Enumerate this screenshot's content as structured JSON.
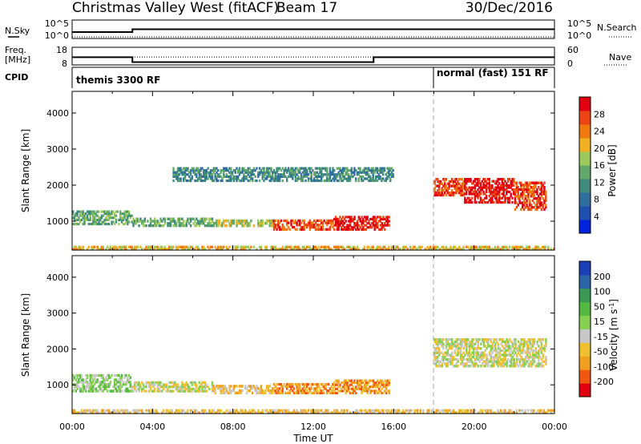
{
  "header": {
    "station": "Christmas Valley West (fitACF)",
    "beam": "Beam 17",
    "date": "30/Dec/2016"
  },
  "colors": {
    "power_scale": [
      "#0022dd",
      "#1d4fb0",
      "#2f6fa0",
      "#3f8a7a",
      "#62a86a",
      "#9cc95a",
      "#f2b020",
      "#f07a10",
      "#ec4412",
      "#e00010"
    ],
    "velocity_scale": [
      "#e00010",
      "#f05810",
      "#f0a020",
      "#f0c030",
      "#c8c8c8",
      "#88d050",
      "#55b840",
      "#3a9a55",
      "#2a65a8",
      "#1b3fb8"
    ]
  },
  "chart_data": [
    {
      "type": "line",
      "name": "nsky-nsearch-panel",
      "left_label": "N.Sky",
      "right_label": "N.Search",
      "left_ticks": [
        "10^5",
        "10^0"
      ],
      "right_ticks": [
        "10^5",
        "10^0"
      ],
      "xlim": [
        0,
        24
      ],
      "series": [
        {
          "x": [
            0,
            3,
            3,
            24
          ],
          "y": [
            0.35,
            0.35,
            0.5,
            0.5
          ]
        }
      ]
    },
    {
      "type": "line",
      "name": "freq-nave-panel",
      "left_label": "Freq. [MHz]",
      "right_label": "Nave",
      "left_ticks": [
        "18",
        "8"
      ],
      "right_ticks": [
        "60",
        "0"
      ],
      "xlim": [
        0,
        24
      ],
      "ylim": [
        8,
        18
      ],
      "series": [
        {
          "name": "Freq.",
          "x": [
            0,
            3,
            3,
            15,
            15,
            24
          ],
          "y": [
            12.4,
            12.4,
            9.6,
            9.6,
            12.4,
            12.4
          ]
        },
        {
          "name": "Nave",
          "x": [
            0,
            24
          ],
          "y": [
            27,
            27
          ]
        }
      ]
    },
    {
      "type": "table",
      "name": "cpid-panel",
      "label": "CPID",
      "segments": [
        {
          "start": 0,
          "end": 18,
          "text": "themis 3300 RF"
        },
        {
          "start": 18,
          "end": 24,
          "text": "normal (fast) 151 RF"
        }
      ]
    },
    {
      "type": "heatmap",
      "name": "power-rti",
      "ylabel": "Slant Range [km]",
      "yticks": [
        1000,
        2000,
        3000,
        4000
      ],
      "ylim": [
        200,
        4600
      ],
      "xlim": [
        0,
        24
      ],
      "colorbar_label": "Power [dB]",
      "colorbar_ticks": [
        "28",
        "24",
        "20",
        "16",
        "12",
        "8",
        "4"
      ],
      "features": [
        {
          "t0": 0,
          "t1": 3,
          "r0": 900,
          "r1": 1300,
          "level": 4
        },
        {
          "t0": 3,
          "t1": 7,
          "r0": 850,
          "r1": 1100,
          "level": 4
        },
        {
          "t0": 7,
          "t1": 10,
          "r0": 850,
          "r1": 1050,
          "level": 5
        },
        {
          "t0": 10,
          "t1": 13,
          "r0": 750,
          "r1": 1050,
          "level": 8
        },
        {
          "t0": 13,
          "t1": 15.8,
          "r0": 750,
          "r1": 1150,
          "level": 9
        },
        {
          "t0": 18,
          "t1": 19.5,
          "r0": 1700,
          "r1": 2200,
          "level": 8
        },
        {
          "t0": 19.5,
          "t1": 22,
          "r0": 1500,
          "r1": 2200,
          "level": 9
        },
        {
          "t0": 22,
          "t1": 23.6,
          "r0": 1300,
          "r1": 2100,
          "level": 8
        },
        {
          "t0": 0,
          "t1": 24,
          "r0": 200,
          "r1": 320,
          "level": 6
        },
        {
          "t0": 5,
          "t1": 16,
          "r0": 2100,
          "r1": 2500,
          "level": 3
        }
      ],
      "markers": [
        {
          "x": 18
        }
      ]
    },
    {
      "type": "heatmap",
      "name": "velocity-rti",
      "ylabel": "Slant Range [km]",
      "xlabel": "Time UT",
      "yticks": [
        1000,
        2000,
        3000,
        4000
      ],
      "ylim": [
        200,
        4600
      ],
      "xlim": [
        0,
        24
      ],
      "xticks": [
        "00:00",
        "04:00",
        "08:00",
        "12:00",
        "16:00",
        "20:00",
        "00:00"
      ],
      "colorbar_label": "Velocity [m s^-1]",
      "colorbar_ticks": [
        "200",
        "100",
        "50",
        "15",
        "-15",
        "-50",
        "-100",
        "-200"
      ],
      "features": [
        {
          "t0": 0,
          "t1": 3,
          "r0": 800,
          "r1": 1300,
          "level": 5
        },
        {
          "t0": 3,
          "t1": 7,
          "r0": 800,
          "r1": 1100,
          "level": 4
        },
        {
          "t0": 7,
          "t1": 10,
          "r0": 750,
          "r1": 1000,
          "level": 3
        },
        {
          "t0": 10,
          "t1": 13,
          "r0": 750,
          "r1": 1050,
          "level": 2
        },
        {
          "t0": 13,
          "t1": 15.8,
          "r0": 750,
          "r1": 1150,
          "level": 2
        },
        {
          "t0": 18,
          "t1": 23.6,
          "r0": 1500,
          "r1": 2300,
          "level": 4
        },
        {
          "t0": 0,
          "t1": 24,
          "r0": 200,
          "r1": 320,
          "level": 3
        }
      ],
      "markers": [
        {
          "x": 18
        }
      ]
    }
  ]
}
